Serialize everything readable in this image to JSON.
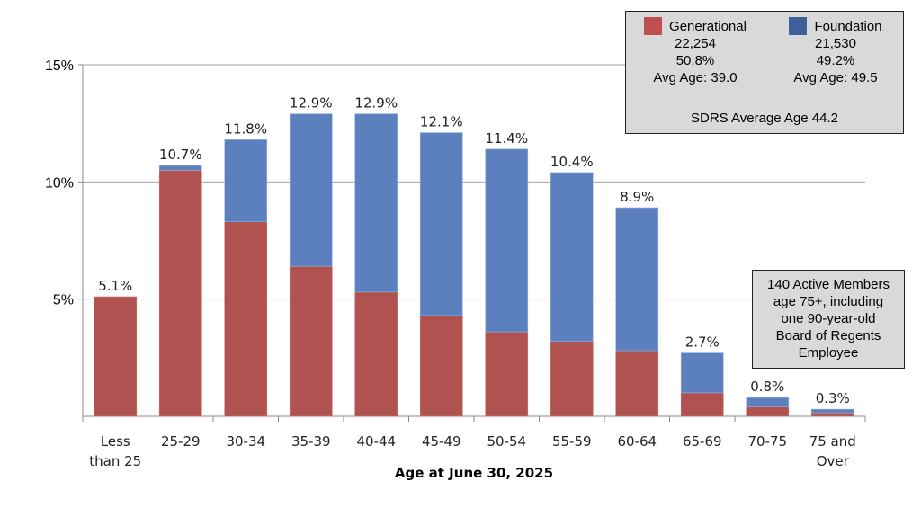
{
  "chart_data": {
    "type": "bar",
    "stacked": true,
    "xlabel": "Age at June 30, 2025",
    "ylabel": "",
    "ylim": [
      0,
      15
    ],
    "yticks": [
      "5%",
      "10%",
      "15%"
    ],
    "grid": true,
    "categories": [
      [
        "Less",
        "than 25"
      ],
      [
        "25-29"
      ],
      [
        "30-34"
      ],
      [
        "35-39"
      ],
      [
        "40-44"
      ],
      [
        "45-49"
      ],
      [
        "50-54"
      ],
      [
        "55-59"
      ],
      [
        "60-64"
      ],
      [
        "65-69"
      ],
      [
        "70-75"
      ],
      [
        "75 and",
        "Over"
      ]
    ],
    "series": [
      {
        "name": "Generational",
        "color": "#b0524f",
        "values": [
          5.1,
          10.5,
          8.3,
          6.4,
          5.3,
          4.3,
          3.6,
          3.2,
          2.8,
          1.0,
          0.4,
          0.15
        ]
      },
      {
        "name": "Foundation",
        "color": "#5b80bd",
        "values": [
          0.0,
          0.2,
          3.5,
          6.5,
          7.6,
          7.8,
          7.8,
          7.2,
          6.1,
          1.7,
          0.4,
          0.15
        ]
      }
    ],
    "total_labels": [
      "5.1%",
      "10.7%",
      "11.8%",
      "12.9%",
      "12.9%",
      "12.1%",
      "11.4%",
      "10.4%",
      "8.9%",
      "2.7%",
      "0.8%",
      "0.3%"
    ],
    "totals": [
      5.1,
      10.7,
      11.8,
      12.9,
      12.9,
      12.1,
      11.4,
      10.4,
      8.9,
      2.7,
      0.8,
      0.3
    ],
    "legend_placement": "top-right"
  },
  "legend": {
    "generational": {
      "label": "Generational",
      "count": "22,254",
      "pct": "50.8%",
      "avg": "Avg Age: 39.0",
      "color": "#c0504d"
    },
    "foundation": {
      "label": "Foundation",
      "count": "21,530",
      "pct": "49.2%",
      "avg": "Avg Age: 49.5",
      "color": "#3f5f9a"
    },
    "sdrs": "SDRS Average Age 44.2"
  },
  "note": [
    "140 Active Members",
    "age 75+, including",
    "one 90-year-old",
    "Board of Regents",
    "Employee"
  ]
}
